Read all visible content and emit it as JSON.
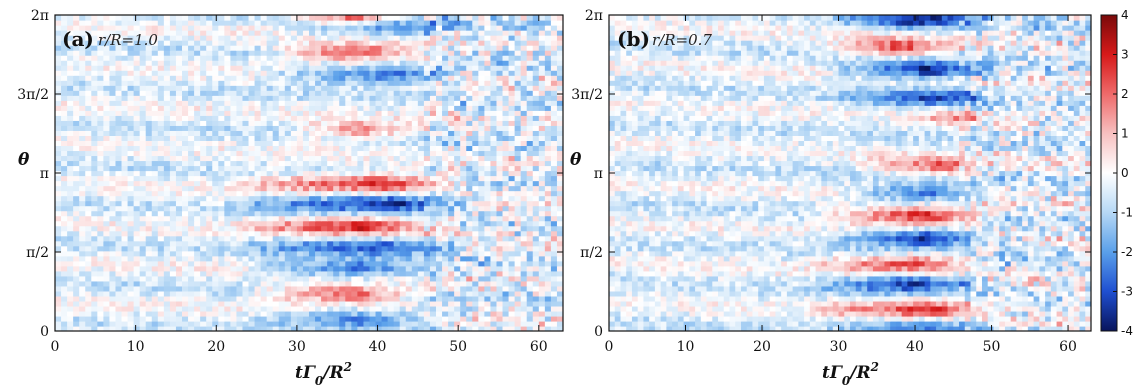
{
  "chart_data": [
    {
      "type": "heatmap",
      "panel_label": "(a)",
      "annotation": "r/R=1.0",
      "xlabel": "tΓ0/R2",
      "ylabel": "θ",
      "xlim": [
        0,
        63
      ],
      "ylim": [
        0,
        6.2832
      ],
      "x_ticks": [
        0,
        10,
        20,
        30,
        40,
        50,
        60
      ],
      "x_tick_labels": [
        "0",
        "10",
        "20",
        "30",
        "40",
        "50",
        "60"
      ],
      "y_ticks": [
        0,
        1.5708,
        3.1416,
        4.7124,
        6.2832
      ],
      "y_tick_labels": [
        "0",
        "π/2",
        "π",
        "3π/2",
        "2π"
      ],
      "bands": [
        {
          "center": 0.25,
          "value": -2.2,
          "start": 25,
          "peak": 38,
          "end": 46
        },
        {
          "center": 0.75,
          "value": 3.0,
          "start": 25,
          "peak": 37,
          "end": 44
        },
        {
          "center": 1.25,
          "value": -2.4,
          "start": 25,
          "peak": 38,
          "end": 46
        },
        {
          "center": 1.7,
          "value": -2.6,
          "start": 24,
          "peak": 40,
          "end": 48
        },
        {
          "center": 2.1,
          "value": 3.3,
          "start": 24,
          "peak": 38,
          "end": 46
        },
        {
          "center": 2.55,
          "value": -3.5,
          "start": 24,
          "peak": 42,
          "end": 50
        },
        {
          "center": 2.95,
          "value": 3.5,
          "start": 24,
          "peak": 41,
          "end": 49
        },
        {
          "center": 4.0,
          "value": 2.2,
          "start": 30,
          "peak": 38,
          "end": 44
        },
        {
          "center": 5.1,
          "value": -2.6,
          "start": 27,
          "peak": 42,
          "end": 48
        },
        {
          "center": 5.55,
          "value": 3.2,
          "start": 28,
          "peak": 37,
          "end": 44
        },
        {
          "center": 6.05,
          "value": -2.2,
          "start": 30,
          "peak": 42,
          "end": 50
        },
        {
          "center": 6.25,
          "value": 3.3,
          "start": 30,
          "peak": 37,
          "end": 43
        }
      ]
    },
    {
      "type": "heatmap",
      "panel_label": "(b)",
      "annotation": "r/R=0.7",
      "xlabel": "tΓ0/R2",
      "ylabel": "θ",
      "xlim": [
        0,
        63
      ],
      "ylim": [
        0,
        6.2832
      ],
      "x_ticks": [
        0,
        10,
        20,
        30,
        40,
        50,
        60
      ],
      "x_tick_labels": [
        "0",
        "10",
        "20",
        "30",
        "40",
        "50",
        "60"
      ],
      "y_ticks": [
        0,
        1.5708,
        3.1416,
        4.7124,
        6.2832
      ],
      "y_tick_labels": [
        "0",
        "π/2",
        "π",
        "3π/2",
        "2π"
      ],
      "bands": [
        {
          "center": 0.1,
          "value": -1.8,
          "start": 30,
          "peak": 42,
          "end": 50
        },
        {
          "center": 0.45,
          "value": 3.0,
          "start": 28,
          "peak": 42,
          "end": 49
        },
        {
          "center": 0.95,
          "value": -3.2,
          "start": 28,
          "peak": 40,
          "end": 48
        },
        {
          "center": 1.35,
          "value": 3.1,
          "start": 28,
          "peak": 40,
          "end": 47
        },
        {
          "center": 1.85,
          "value": -3.6,
          "start": 29,
          "peak": 42,
          "end": 49
        },
        {
          "center": 2.3,
          "value": 3.8,
          "start": 29,
          "peak": 41,
          "end": 48
        },
        {
          "center": 2.75,
          "value": -2.6,
          "start": 32,
          "peak": 42,
          "end": 47
        },
        {
          "center": 3.3,
          "value": 2.6,
          "start": 34,
          "peak": 44,
          "end": 48
        },
        {
          "center": 4.25,
          "value": 1.6,
          "start": 40,
          "peak": 45,
          "end": 49
        },
        {
          "center": 4.65,
          "value": -2.6,
          "start": 30,
          "peak": 43,
          "end": 49
        },
        {
          "center": 5.2,
          "value": -3.4,
          "start": 30,
          "peak": 42,
          "end": 49
        },
        {
          "center": 5.65,
          "value": 3.0,
          "start": 30,
          "peak": 38,
          "end": 44
        },
        {
          "center": 6.2,
          "value": -3.2,
          "start": 30,
          "peak": 41,
          "end": 48
        }
      ]
    }
  ],
  "colorbar": {
    "min": -4,
    "max": 4,
    "ticks": [
      4,
      3,
      2,
      1,
      0,
      -1,
      -2,
      -3,
      -4
    ],
    "tick_labels": [
      "4",
      "3",
      "2",
      "1",
      "0",
      "-1",
      "-2",
      "-3",
      "-4"
    ],
    "colors": [
      "#08145c",
      "#1f4fd0",
      "#5aa0ea",
      "#b6d8f5",
      "#ffffff",
      "#f7c0c0",
      "#ef6a6a",
      "#d61a1a",
      "#7a0a0a"
    ]
  }
}
